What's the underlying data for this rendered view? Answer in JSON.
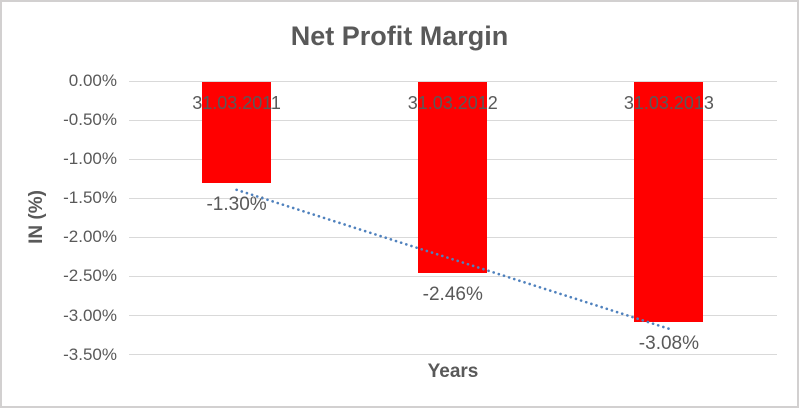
{
  "chart": {
    "title": "Net Profit Margin",
    "y_axis_title": "IN (%)",
    "x_axis_title": "Years"
  },
  "chart_data": {
    "type": "bar",
    "title": "Net Profit Margin",
    "xlabel": "Years",
    "ylabel": "IN (%)",
    "categories": [
      "31.03.2011",
      "31.03.2012",
      "31.03.2013"
    ],
    "values": [
      -1.3,
      -2.46,
      -3.08
    ],
    "data_labels": [
      "-1.30%",
      "-2.46%",
      "-3.08%"
    ],
    "y_ticks": [
      {
        "label": "0.00%",
        "value": 0
      },
      {
        "label": "-0.50%",
        "value": -0.5
      },
      {
        "label": "-1.00%",
        "value": -1.0
      },
      {
        "label": "-1.50%",
        "value": -1.5
      },
      {
        "label": "-2.00%",
        "value": -2.0
      },
      {
        "label": "-2.50%",
        "value": -2.5
      },
      {
        "label": "-3.00%",
        "value": -3.0
      },
      {
        "label": "-3.50%",
        "value": -3.5
      }
    ],
    "ylim": [
      -3.5,
      0
    ],
    "grid": true,
    "legend": "none",
    "bar_color": "#FF0000",
    "text_color": "#595959",
    "gridline_color": "#D9D9D9",
    "trendline": {
      "type": "linear",
      "style": "dotted",
      "color": "#4F81BD"
    }
  }
}
